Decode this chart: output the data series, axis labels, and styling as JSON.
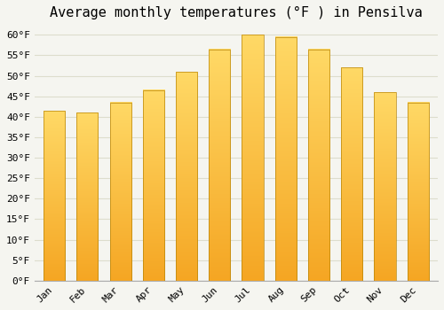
{
  "title": "Average monthly temperatures (°F ) in Pensilva",
  "months": [
    "Jan",
    "Feb",
    "Mar",
    "Apr",
    "May",
    "Jun",
    "Jul",
    "Aug",
    "Sep",
    "Oct",
    "Nov",
    "Dec"
  ],
  "values": [
    41.5,
    41.0,
    43.5,
    46.5,
    51.0,
    56.5,
    60.0,
    59.5,
    56.5,
    52.0,
    46.0,
    43.5
  ],
  "bar_color_top": "#FFD966",
  "bar_color_bottom": "#F5A623",
  "bar_edge_color": "#B8860B",
  "ylim": [
    0,
    62
  ],
  "yticks": [
    0,
    5,
    10,
    15,
    20,
    25,
    30,
    35,
    40,
    45,
    50,
    55,
    60
  ],
  "background_color": "#F5F5F0",
  "plot_bg_color": "#F5F5F0",
  "grid_color": "#ddddcc",
  "title_fontsize": 11,
  "tick_fontsize": 8,
  "bar_width": 0.65
}
